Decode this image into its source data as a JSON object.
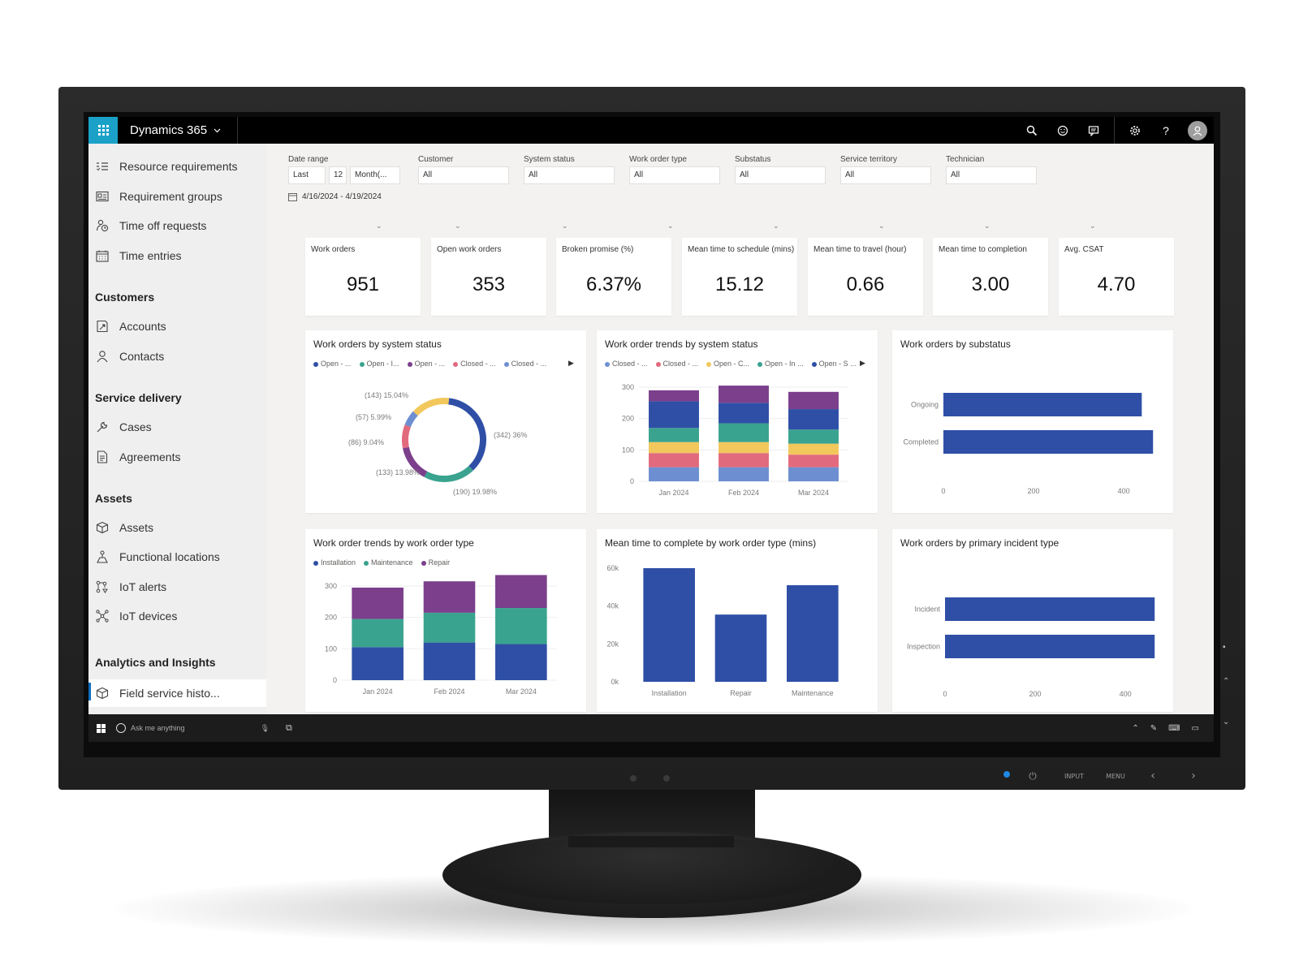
{
  "app": {
    "title": "Dynamics 365"
  },
  "topbar_icons": [
    "search-icon",
    "smiley-icon",
    "chat-icon",
    "gear-icon",
    "help-icon",
    "user-icon"
  ],
  "sidebar": {
    "items_top": [
      {
        "label": "Resource requirements",
        "icon": "list-icon"
      },
      {
        "label": "Requirement groups",
        "icon": "group-icon"
      },
      {
        "label": "Time off requests",
        "icon": "person-clock-icon"
      },
      {
        "label": "Time entries",
        "icon": "calendar-icon"
      }
    ],
    "groups": [
      {
        "title": "Customers",
        "items": [
          {
            "label": "Accounts",
            "icon": "account-icon"
          },
          {
            "label": "Contacts",
            "icon": "contact-icon"
          }
        ]
      },
      {
        "title": "Service delivery",
        "items": [
          {
            "label": "Cases",
            "icon": "wrench-icon"
          },
          {
            "label": "Agreements",
            "icon": "document-icon"
          }
        ]
      },
      {
        "title": "Assets",
        "items": [
          {
            "label": "Assets",
            "icon": "box-icon"
          },
          {
            "label": "Functional locations",
            "icon": "location-icon"
          },
          {
            "label": "IoT alerts",
            "icon": "iot-alert-icon"
          },
          {
            "label": "IoT devices",
            "icon": "iot-device-icon"
          }
        ]
      },
      {
        "title": "Analytics and Insights",
        "items": [
          {
            "label": "Field service histo...",
            "icon": "box-icon",
            "active": true
          }
        ]
      }
    ]
  },
  "filters": {
    "date_range": {
      "label": "Date range",
      "last": "Last",
      "count": "12",
      "unit": "Month(...",
      "range_text": "4/16/2024 - 4/19/2024"
    },
    "others": [
      {
        "label": "Customer",
        "value": "All"
      },
      {
        "label": "System status",
        "value": "All"
      },
      {
        "label": "Work order type",
        "value": "All"
      },
      {
        "label": "Substatus",
        "value": "All"
      },
      {
        "label": "Service territory",
        "value": "All"
      },
      {
        "label": "Technician",
        "value": "All"
      }
    ]
  },
  "kpis": [
    {
      "label": "Work orders",
      "value": "951"
    },
    {
      "label": "Open work orders",
      "value": "353"
    },
    {
      "label": "Broken promise (%)",
      "value": "6.37%"
    },
    {
      "label": "Mean time to schedule (mins)",
      "value": "15.12"
    },
    {
      "label": "Mean time to travel (hour)",
      "value": "0.66"
    },
    {
      "label": "Mean time to completion",
      "value": "3.00"
    },
    {
      "label": "Avg. CSAT",
      "value": "4.70"
    }
  ],
  "colors": {
    "blue": "#2f4fa6",
    "purple": "#7b3f8c",
    "teal": "#3aa38f",
    "yellow": "#f2c75c",
    "pink": "#e26a7d",
    "lightblue": "#6d8fd1",
    "dark": "#000000",
    "accent": "#1ba1c7"
  },
  "chart_data": [
    {
      "type": "pie",
      "title": "Work orders by system status",
      "legend": [
        "Open - ...",
        "Open - I...",
        "Open - ...",
        "Closed - ...",
        "Closed - ..."
      ],
      "slices": [
        {
          "label": "(342) 36%",
          "value": 342,
          "color": "#2f4fa6"
        },
        {
          "label": "(190) 19.98%",
          "value": 190,
          "color": "#3aa38f"
        },
        {
          "label": "(133) 13.98%",
          "value": 133,
          "color": "#7b3f8c"
        },
        {
          "label": "(86) 9.04%",
          "value": 86,
          "color": "#e26a7d"
        },
        {
          "label": "(57) 5.99%",
          "value": 57,
          "color": "#6d8fd1"
        },
        {
          "label": "(143) 15.04%",
          "value": 143,
          "color": "#f2c75c"
        }
      ]
    },
    {
      "type": "bar",
      "stacked": true,
      "title": "Work order trends by system status",
      "legend": [
        "Closed - ...",
        "Closed - ...",
        "Open - C...",
        "Open - In ...",
        "Open - S ..."
      ],
      "categories": [
        "Jan 2024",
        "Feb 2024",
        "Mar 2024"
      ],
      "yticks": [
        0,
        100,
        200,
        300
      ],
      "ylim": [
        0,
        300
      ],
      "series": [
        {
          "color": "#6d8fd1",
          "values": [
            45,
            45,
            45
          ]
        },
        {
          "color": "#e26a7d",
          "values": [
            45,
            45,
            40
          ]
        },
        {
          "color": "#f2c75c",
          "values": [
            35,
            35,
            35
          ]
        },
        {
          "color": "#3aa38f",
          "values": [
            45,
            60,
            45
          ]
        },
        {
          "color": "#2f4fa6",
          "values": [
            85,
            65,
            65
          ]
        },
        {
          "color": "#7b3f8c",
          "values": [
            35,
            55,
            55
          ]
        }
      ]
    },
    {
      "type": "bar",
      "orientation": "horizontal",
      "title": "Work orders by substatus",
      "categories": [
        "Ongoing",
        "Completed"
      ],
      "values": [
        440,
        465
      ],
      "xticks": [
        0,
        200,
        400
      ],
      "xlim": [
        0,
        470
      ]
    },
    {
      "type": "bar",
      "stacked": true,
      "title": "Work order trends by work order type",
      "legend": [
        "Installation",
        "Maintenance",
        "Repair"
      ],
      "categories": [
        "Jan 2024",
        "Feb 2024",
        "Mar 2024"
      ],
      "yticks": [
        0,
        100,
        200,
        300
      ],
      "ylim": [
        0,
        300
      ],
      "series": [
        {
          "name": "Installation",
          "color": "#2f4fa6",
          "values": [
            105,
            120,
            115
          ]
        },
        {
          "name": "Maintenance",
          "color": "#3aa38f",
          "values": [
            90,
            95,
            115
          ]
        },
        {
          "name": "Repair",
          "color": "#7b3f8c",
          "values": [
            100,
            100,
            105
          ]
        }
      ]
    },
    {
      "type": "bar",
      "title": "Mean time to complete by work order type (mins)",
      "categories": [
        "Installation",
        "Repair",
        "Maintenance"
      ],
      "values": [
        60000,
        35500,
        51000
      ],
      "yticks": [
        "0k",
        "20k",
        "40k",
        "60k"
      ],
      "ylim": [
        0,
        60000
      ]
    },
    {
      "type": "bar",
      "orientation": "horizontal",
      "title": "Work orders by primary incident type",
      "categories": [
        "Incident",
        "Inspection"
      ],
      "values": [
        465,
        465
      ],
      "xticks": [
        0,
        200,
        400
      ],
      "xlim": [
        0,
        470
      ]
    }
  ],
  "taskbar": {
    "search_placeholder": "Ask me anything"
  },
  "monitor": {
    "input_label": "INPUT",
    "menu_label": "MENU"
  }
}
